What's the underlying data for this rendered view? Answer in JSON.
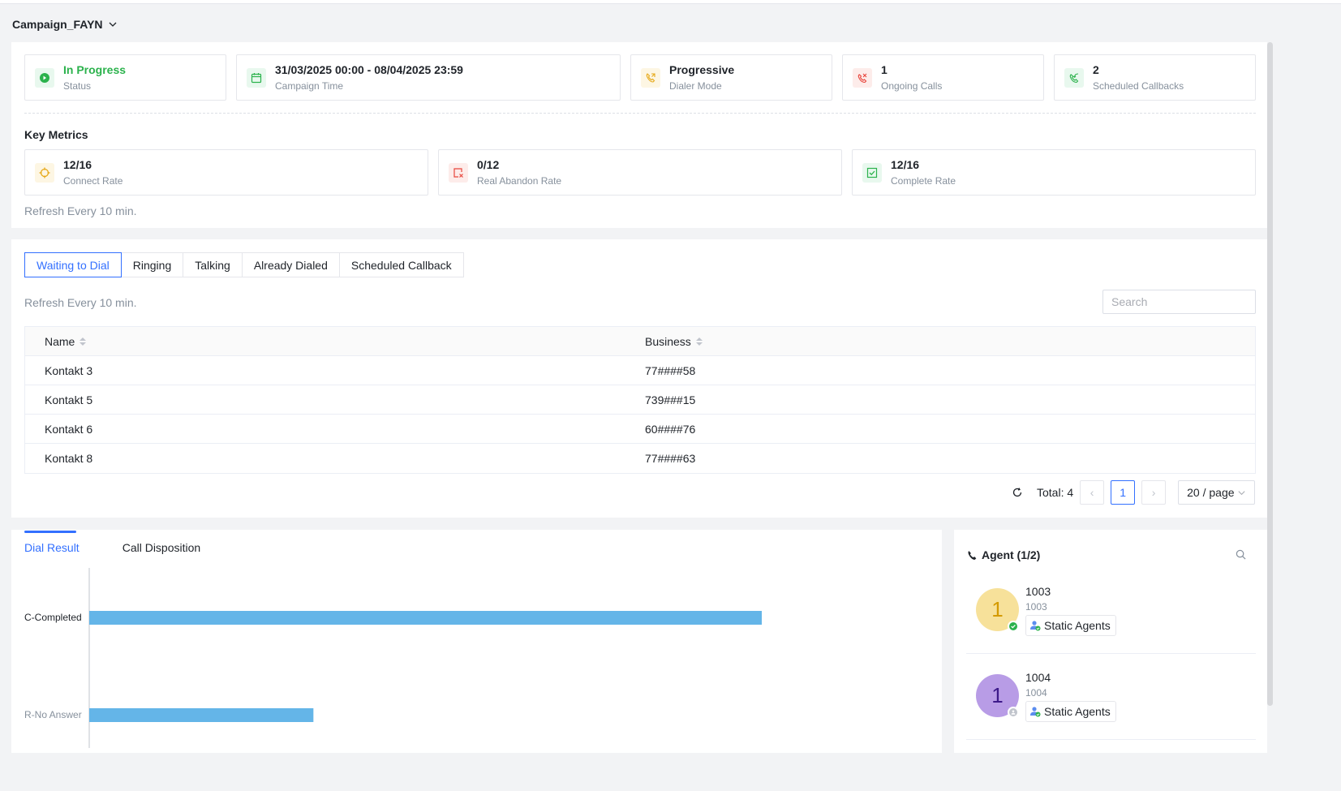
{
  "header": {
    "campaign_name": "Campaign_FAYN"
  },
  "summary_cards": [
    {
      "value": "In Progress",
      "label": "Status",
      "icon": "play-circle-icon"
    },
    {
      "value": "31/03/2025 00:00 - 08/04/2025 23:59",
      "label": "Campaign Time",
      "icon": "calendar-icon"
    },
    {
      "value": "Progressive",
      "label": "Dialer Mode",
      "icon": "phone-outgoing-icon"
    },
    {
      "value": "1",
      "label": "Ongoing Calls",
      "icon": "phone-missed-icon"
    },
    {
      "value": "2",
      "label": "Scheduled Callbacks",
      "icon": "phone-callback-icon"
    }
  ],
  "key_metrics": {
    "title": "Key Metrics",
    "cards": [
      {
        "value": "12/16",
        "label": "Connect Rate",
        "icon": "target-icon"
      },
      {
        "value": "0/12",
        "label": "Real Abandon Rate",
        "icon": "abandon-icon"
      },
      {
        "value": "12/16",
        "label": "Complete Rate",
        "icon": "check-square-icon"
      }
    ],
    "refresh_note": "Refresh Every 10 min."
  },
  "call_tabs": {
    "items": [
      "Waiting to Dial",
      "Ringing",
      "Talking",
      "Already Dialed",
      "Scheduled Callback"
    ],
    "active": 0,
    "refresh_note": "Refresh Every 10 min.",
    "search_placeholder": "Search"
  },
  "table": {
    "columns": [
      "Name",
      "Business"
    ],
    "rows": [
      {
        "name": "Kontakt 3",
        "business": "77####58"
      },
      {
        "name": "Kontakt 5",
        "business": "739###15"
      },
      {
        "name": "Kontakt 6",
        "business": "60####76"
      },
      {
        "name": "Kontakt 8",
        "business": "77####63"
      }
    ]
  },
  "pagination": {
    "total_label": "Total: 4",
    "current_page": "1",
    "page_size": "20 / page"
  },
  "results_tabs": {
    "items": [
      "Dial Result",
      "Call Disposition"
    ],
    "active": 0
  },
  "chart_data": {
    "type": "bar",
    "orientation": "horizontal",
    "categories": [
      "C-Completed",
      "R-No Answer"
    ],
    "values": [
      12,
      4
    ],
    "bar_color": "#64b5e8",
    "title": "",
    "xlabel": "",
    "ylabel": ""
  },
  "agents": {
    "title": "Agent (1/2)",
    "items": [
      {
        "avatar": "1",
        "name": "1003",
        "ext": "1003",
        "tag": "Static Agents",
        "status": "online",
        "avatar_bg": "#f7e19a",
        "avatar_fg": "#d49a00"
      },
      {
        "avatar": "1",
        "name": "1004",
        "ext": "1004",
        "tag": "Static Agents",
        "status": "offline",
        "avatar_bg": "#b89ce6",
        "avatar_fg": "#3d1a8a"
      }
    ]
  }
}
